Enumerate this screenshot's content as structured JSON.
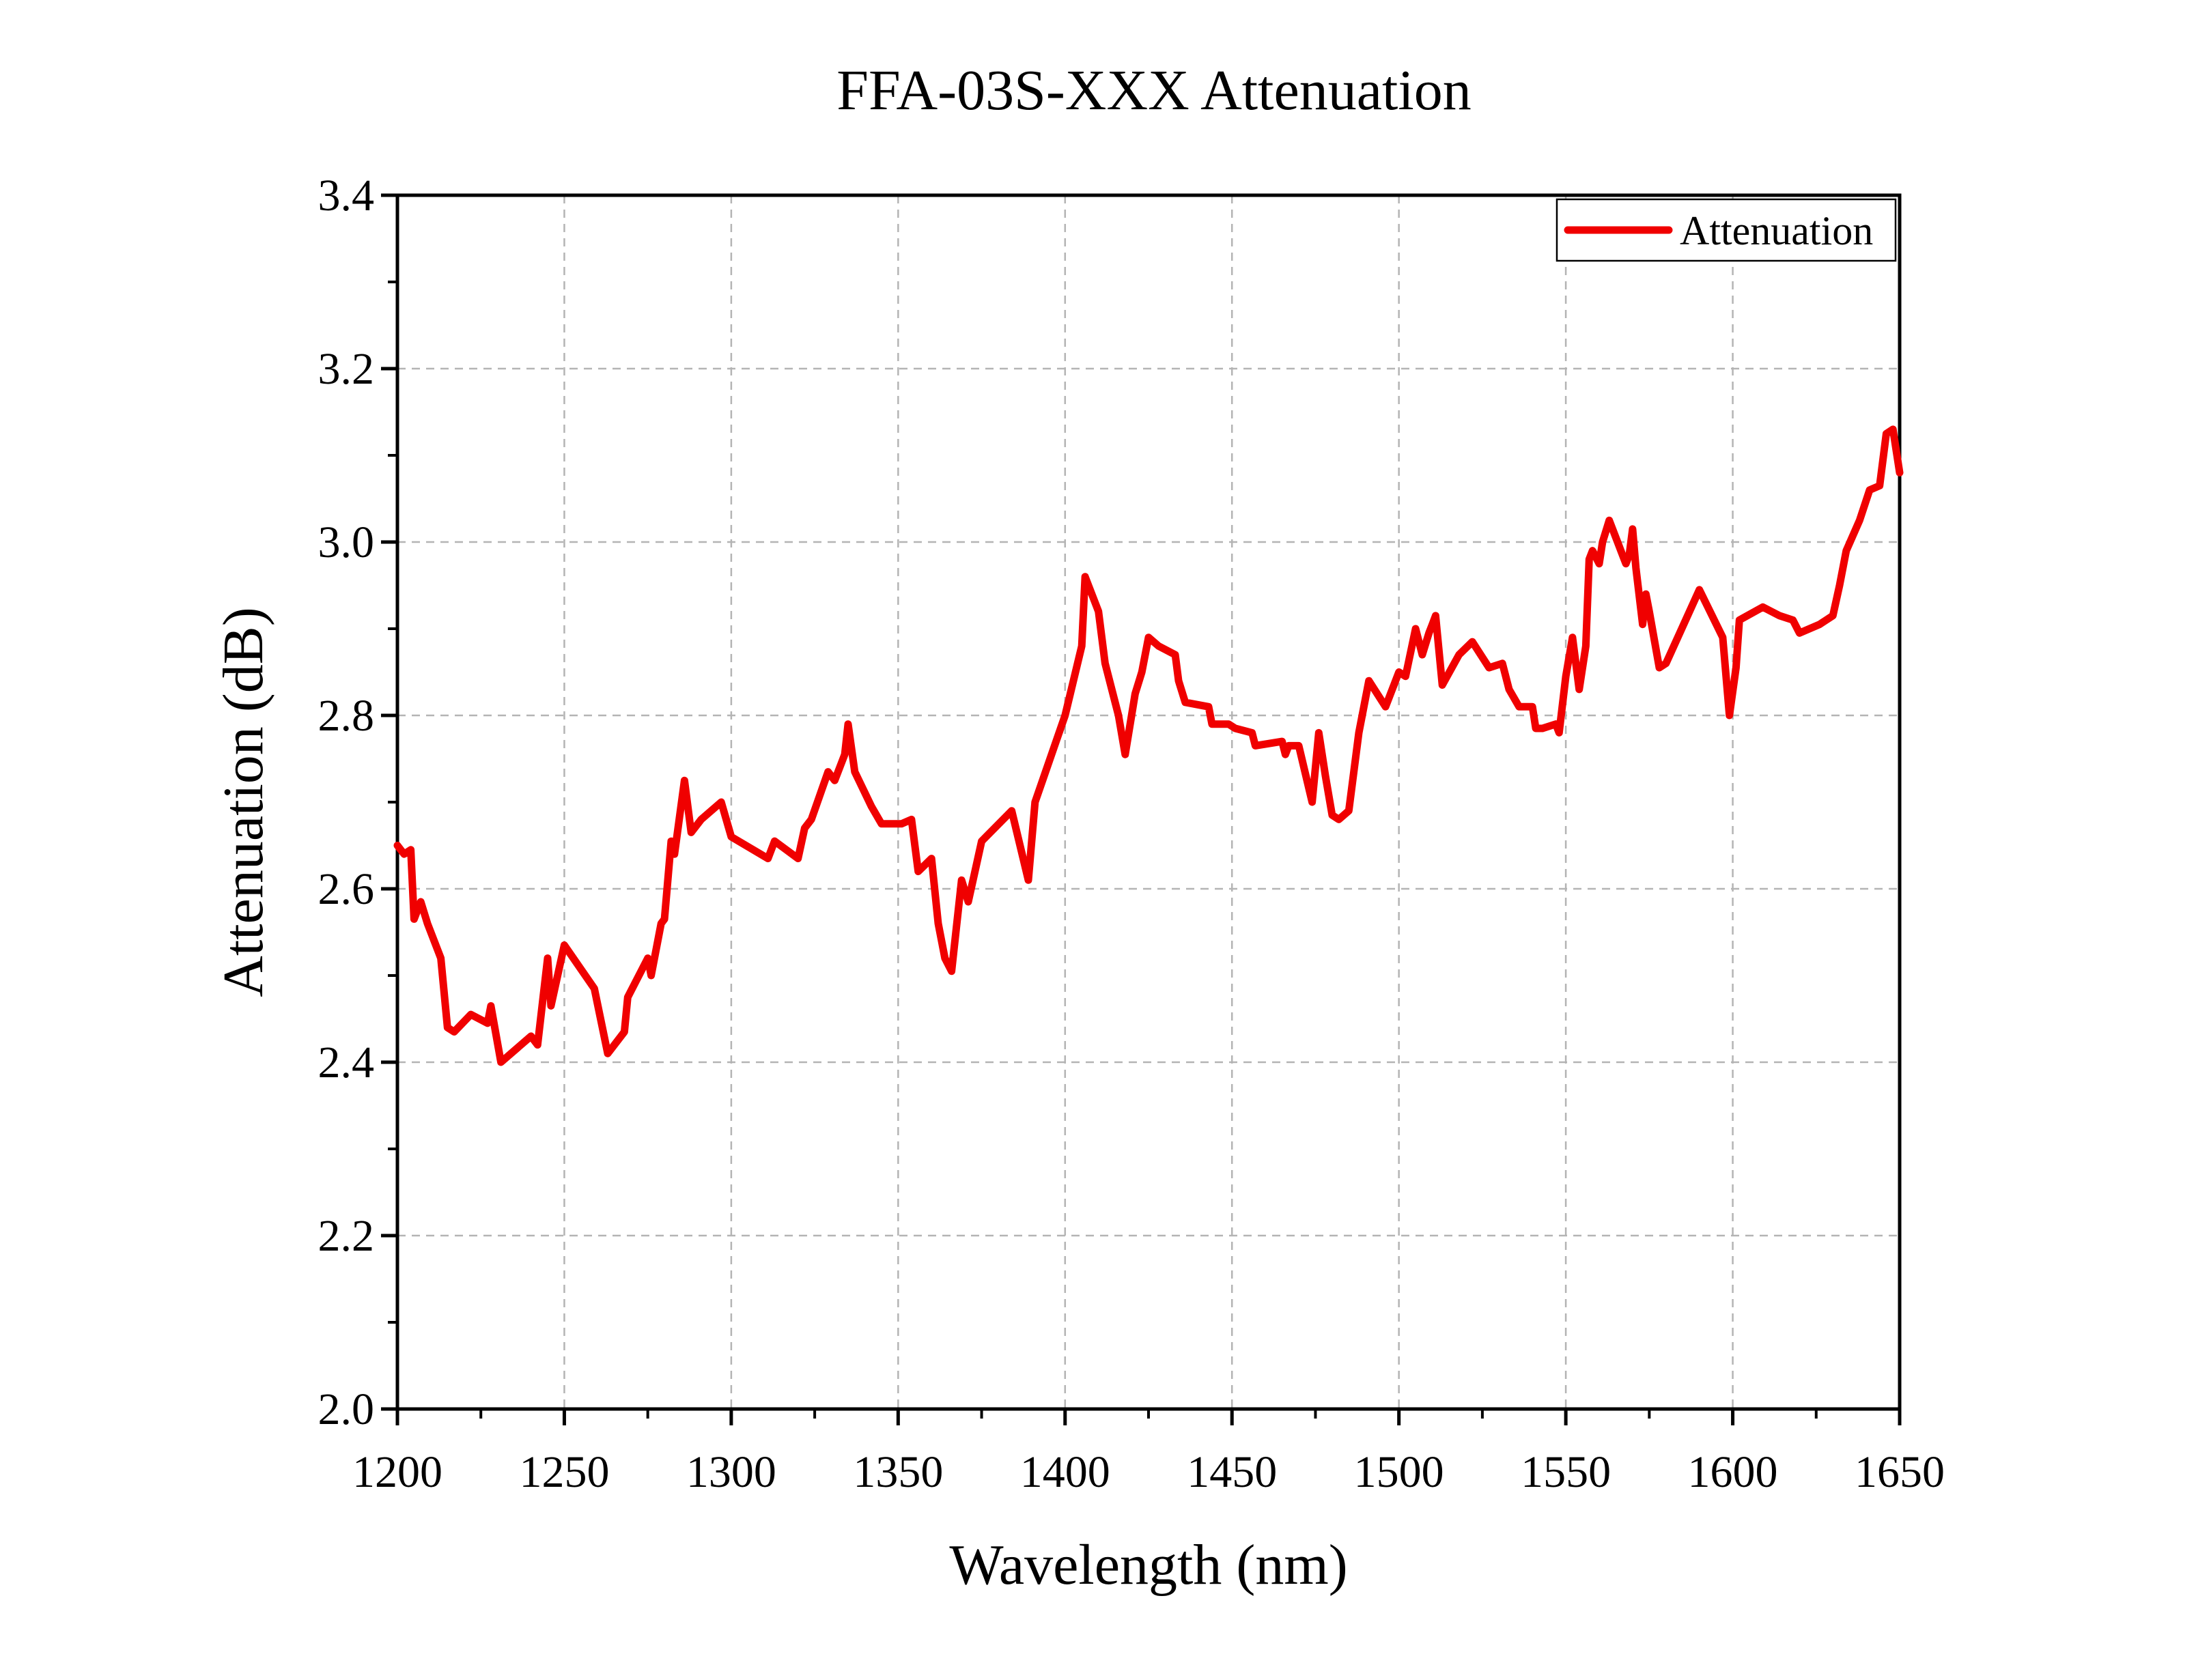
{
  "chart_data": {
    "type": "line",
    "title": "FFA-03S-XXX Attenuation",
    "xlabel": "Wavelength (nm)",
    "ylabel": "Attenuation (dB)",
    "xlim": [
      1200,
      1650
    ],
    "ylim": [
      2.0,
      3.4
    ],
    "x_ticks": [
      1200,
      1250,
      1300,
      1350,
      1400,
      1450,
      1500,
      1550,
      1600,
      1650
    ],
    "y_ticks": [
      2.0,
      2.2,
      2.4,
      2.6,
      2.8,
      3.0,
      3.2,
      3.4
    ],
    "x_tick_labels": [
      "1200",
      "1250",
      "1300",
      "1350",
      "1400",
      "1450",
      "1500",
      "1550",
      "1600",
      "1650"
    ],
    "y_tick_labels": [
      "2.0",
      "2.2",
      "2.4",
      "2.6",
      "2.8",
      "3.0",
      "3.2",
      "3.4"
    ],
    "grid": true,
    "legend": {
      "position": "top-right",
      "entries": [
        "Attenuation"
      ]
    },
    "series": [
      {
        "name": "Attenuation",
        "color": "#f00000",
        "x": [
          1200,
          1202,
          1204,
          1205,
          1207,
          1209,
          1213,
          1215,
          1217,
          1222,
          1227,
          1228,
          1231,
          1240,
          1242,
          1245,
          1246,
          1250,
          1259,
          1263,
          1268,
          1269,
          1275,
          1276,
          1279,
          1280,
          1282,
          1283,
          1286,
          1288,
          1291,
          1297,
          1300,
          1311,
          1313,
          1320,
          1322,
          1324,
          1329,
          1331,
          1334,
          1335,
          1337,
          1342,
          1345,
          1351,
          1354,
          1356,
          1360,
          1362,
          1364,
          1366,
          1369,
          1371,
          1375,
          1384,
          1389,
          1391,
          1400,
          1405,
          1406,
          1408,
          1410,
          1412,
          1416,
          1418,
          1421,
          1423,
          1425,
          1428,
          1433,
          1434,
          1436,
          1443,
          1444,
          1449,
          1451,
          1456,
          1457,
          1465,
          1466,
          1467,
          1469,
          1470,
          1474,
          1476,
          1478,
          1480,
          1482,
          1485,
          1488,
          1490,
          1491,
          1496,
          1500,
          1502,
          1505,
          1507,
          1509,
          1510,
          1511,
          1513,
          1518,
          1522,
          1527,
          1531,
          1533,
          1536,
          1540,
          1541,
          1543,
          1547,
          1548,
          1550,
          1552,
          1554,
          1556,
          1557,
          1558,
          1560,
          1561,
          1563,
          1567,
          1568,
          1569,
          1570,
          1571,
          1573,
          1574,
          1575,
          1578,
          1580,
          1590,
          1597,
          1599,
          1601,
          1602,
          1609,
          1614,
          1618,
          1620,
          1626,
          1628,
          1630,
          1632,
          1634,
          1638,
          1641,
          1644,
          1646,
          1648,
          1650
        ],
        "y": [
          2.65,
          2.64,
          2.645,
          2.565,
          2.585,
          2.56,
          2.52,
          2.44,
          2.435,
          2.455,
          2.445,
          2.465,
          2.4,
          2.43,
          2.42,
          2.52,
          2.465,
          2.535,
          2.485,
          2.41,
          2.435,
          2.475,
          2.52,
          2.5,
          2.56,
          2.565,
          2.655,
          2.64,
          2.725,
          2.665,
          2.68,
          2.7,
          2.66,
          2.635,
          2.655,
          2.635,
          2.67,
          2.68,
          2.735,
          2.725,
          2.755,
          2.79,
          2.735,
          2.695,
          2.675,
          2.675,
          2.68,
          2.62,
          2.635,
          2.56,
          2.52,
          2.505,
          2.61,
          2.585,
          2.655,
          2.69,
          2.61,
          2.7,
          2.8,
          2.88,
          2.96,
          2.94,
          2.92,
          2.86,
          2.8,
          2.755,
          2.825,
          2.85,
          2.89,
          2.88,
          2.87,
          2.84,
          2.815,
          2.81,
          2.79,
          2.79,
          2.785,
          2.78,
          2.765,
          2.77,
          2.755,
          2.765,
          2.765,
          2.765,
          2.7,
          2.78,
          2.73,
          2.685,
          2.68,
          2.69,
          2.78,
          2.82,
          2.84,
          2.81,
          2.85,
          2.845,
          2.9,
          2.87,
          2.895,
          2.905,
          2.915,
          2.835,
          2.87,
          2.885,
          2.855,
          2.86,
          2.83,
          2.81,
          2.81,
          2.785,
          2.785,
          2.79,
          2.78,
          2.845,
          2.89,
          2.83,
          2.88,
          2.98,
          2.99,
          2.975,
          3.0,
          3.025,
          2.985,
          2.975,
          2.985,
          3.015,
          2.97,
          2.905,
          2.94,
          2.92,
          2.855,
          2.86,
          2.945,
          2.89,
          2.8,
          2.855,
          2.91,
          2.925,
          2.915,
          2.91,
          2.895,
          2.905,
          2.91,
          2.915,
          2.95,
          2.99,
          3.025,
          3.06,
          3.065,
          3.125,
          3.13,
          3.08
        ]
      }
    ]
  }
}
